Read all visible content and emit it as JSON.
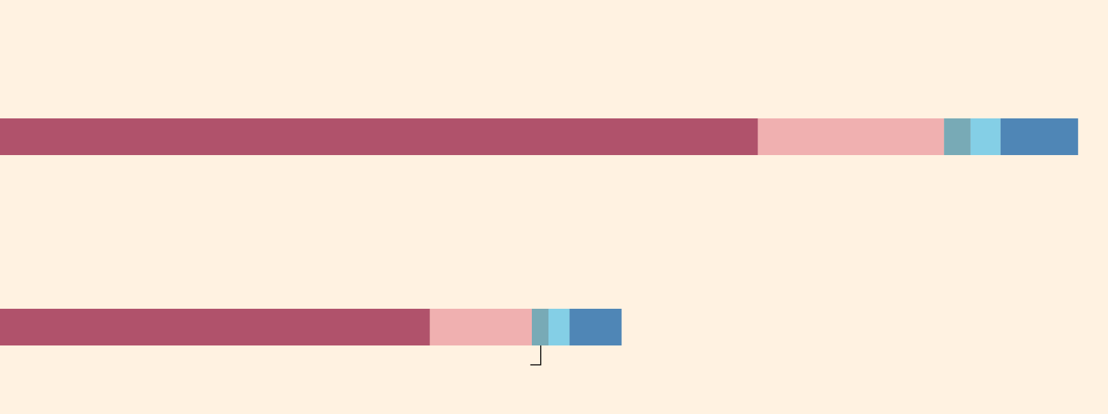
{
  "chart_data": {
    "type": "bar",
    "orientation": "horizontal",
    "stacked": true,
    "title": "",
    "xlabel": "",
    "ylabel": "",
    "categories": [
      "",
      ""
    ],
    "xlim": [
      0,
      100
    ],
    "grid": false,
    "legend": "none",
    "series": [
      {
        "values": [
          68.4,
          38.8
        ],
        "color": "#b0526b"
      },
      {
        "values": [
          16.8,
          9.2
        ],
        "color": "#f0b0b0"
      },
      {
        "values": [
          2.4,
          1.5
        ],
        "color": "#78aab6"
      },
      {
        "values": [
          2.7,
          1.9
        ],
        "color": "#84cfe6"
      },
      {
        "values": [
          7.0,
          4.7
        ],
        "color": "#4f86b6"
      }
    ],
    "annotations": [
      {
        "type": "bracket",
        "category_index": 1,
        "x": 48.8,
        "color": "#000000"
      }
    ]
  },
  "colors": {
    "background": "#fff2e1"
  }
}
